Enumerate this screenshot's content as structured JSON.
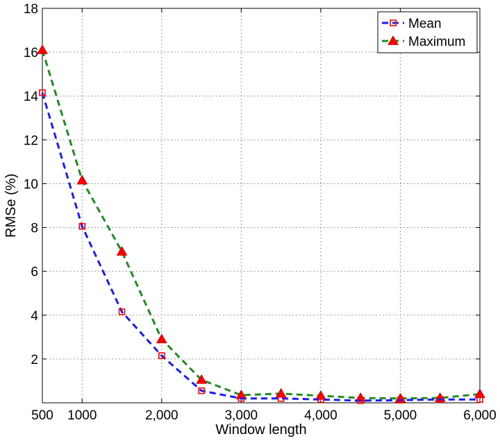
{
  "chart_data": {
    "type": "line",
    "title": "",
    "xlabel": "Window length",
    "ylabel": "RMSe (%)",
    "xlim": [
      500,
      6000
    ],
    "ylim": [
      0,
      18
    ],
    "grid": true,
    "legend_position": "top-right",
    "x_ticks": [
      {
        "value": 500,
        "label": "500"
      },
      {
        "value": 1000,
        "label": "1000"
      },
      {
        "value": 2000,
        "label": "2,000"
      },
      {
        "value": 3000,
        "label": "3,000"
      },
      {
        "value": 4000,
        "label": "4,000"
      },
      {
        "value": 5000,
        "label": "5,000"
      },
      {
        "value": 6000,
        "label": "6,000"
      }
    ],
    "y_ticks": [
      {
        "value": 2,
        "label": "2"
      },
      {
        "value": 4,
        "label": "4"
      },
      {
        "value": 6,
        "label": "6"
      },
      {
        "value": 8,
        "label": "8"
      },
      {
        "value": 10,
        "label": "10"
      },
      {
        "value": 12,
        "label": "12"
      },
      {
        "value": 14,
        "label": "14"
      },
      {
        "value": 16,
        "label": "16"
      },
      {
        "value": 18,
        "label": "18"
      }
    ],
    "x": [
      500,
      1000,
      1500,
      2000,
      2500,
      3000,
      3500,
      4000,
      4500,
      5000,
      5500,
      6000
    ],
    "series": [
      {
        "name": "Mean",
        "color": "#1a1aff",
        "marker": "square",
        "values": [
          14.15,
          8.05,
          4.15,
          2.15,
          0.55,
          0.2,
          0.2,
          0.15,
          0.1,
          0.12,
          0.15,
          0.15
        ]
      },
      {
        "name": "Maximum",
        "color": "#1f8c1f",
        "marker": "triangle",
        "values": [
          16.1,
          10.15,
          6.9,
          2.9,
          1.05,
          0.35,
          0.42,
          0.32,
          0.22,
          0.2,
          0.22,
          0.4
        ]
      }
    ]
  }
}
